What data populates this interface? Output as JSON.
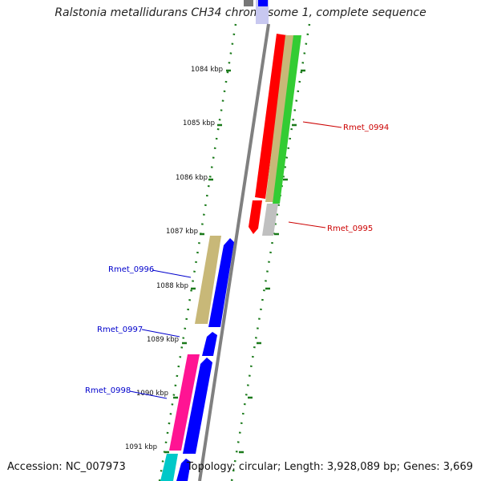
{
  "title": "Ralstonia metallidurans CH34 chromosome 1, complete sequence",
  "footer": {
    "accession": "Accession: NC_007973",
    "topology": "Topology: circular; Length: 3,928,089 bp; Genes: 3,669"
  },
  "scale_labels": [
    "1084 kbp",
    "1085 kbp",
    "1086 kbp",
    "1087 kbp",
    "1088 kbp",
    "1089 kbp",
    "1090 kbp",
    "1091 kbp"
  ],
  "gene_labels": [
    {
      "name": "Rmet_0994",
      "color": "#cc0000",
      "strand": "forward"
    },
    {
      "name": "Rmet_0995",
      "color": "#cc0000",
      "strand": "forward"
    },
    {
      "name": "Rmet_0996",
      "color": "#0000cc",
      "strand": "reverse"
    },
    {
      "name": "Rmet_0997",
      "color": "#0000cc",
      "strand": "reverse"
    },
    {
      "name": "Rmet_0998",
      "color": "#0000cc",
      "strand": "reverse"
    }
  ],
  "colors": {
    "backbone": "#808080",
    "tick": "#1a7a1a",
    "forward_cds": "#ff0000",
    "reverse_cds": "#0000ff",
    "rna": "#33cc33",
    "tan": "#c8b878",
    "gray": "#c0c0c0",
    "magenta": "#ff1493",
    "cyan": "#00c8c8"
  }
}
